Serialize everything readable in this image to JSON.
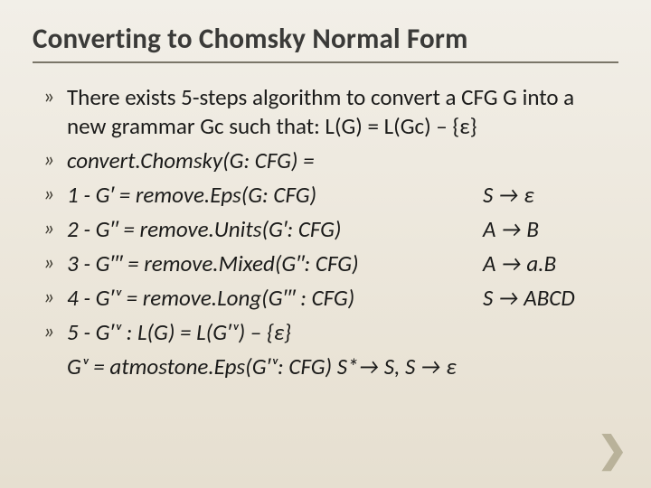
{
  "title": "Converting to Chomsky Normal Form",
  "bullet_glyph": "»",
  "arrow_glyph": "→",
  "colors": {
    "background_top": "#f2efe8",
    "background_bottom": "#e6dfd0",
    "title_color": "#3a3a38",
    "underline_color": "#7a7668",
    "text_color": "#1b1b1a",
    "bullet_color": "#3d3a30",
    "chevron_color": "#b9b29a"
  },
  "typography": {
    "title_fontsize_pt": 24,
    "title_weight": 700,
    "body_fontsize_pt": 19,
    "font_family": "Calibri"
  },
  "items": [
    {
      "bulleted": true,
      "left": "There exists 5-steps algorithm to convert a CFG G into a new grammar Gc such that: L(G) = L(Gc) – {ε}",
      "right": "",
      "italic": false
    },
    {
      "bulleted": true,
      "left": "convert.Chomsky(G: CFG) =",
      "right": "",
      "italic": true
    },
    {
      "bulleted": true,
      "left": "1 - G′ = remove.Eps(G: CFG)",
      "right": "S → ε",
      "italic": true
    },
    {
      "bulleted": true,
      "left": "2 - G′′ = remove.Units(G′: CFG)",
      "right": "A → B",
      "italic": true
    },
    {
      "bulleted": true,
      "left": "3 - G′′′ = remove.Mixed(G′′: CFG)",
      "right": "A → a.B",
      "italic": true
    },
    {
      "bulleted": true,
      "left": "4 - G′ᵛ = remove.Long(G′′′ : CFG)",
      "right": "S → ABCD",
      "italic": true
    },
    {
      "bulleted": true,
      "left": "5 - G′ᵛ : L(G) = L(G′ᵛ) – {ε}",
      "right": "",
      "italic": true
    },
    {
      "bulleted": false,
      "left": "Gᵛ  = atmostone.Eps(G′ᵛ: CFG)   S*→ S, S → ε",
      "right": "",
      "italic": true
    }
  ],
  "corner_chevron": "❯"
}
